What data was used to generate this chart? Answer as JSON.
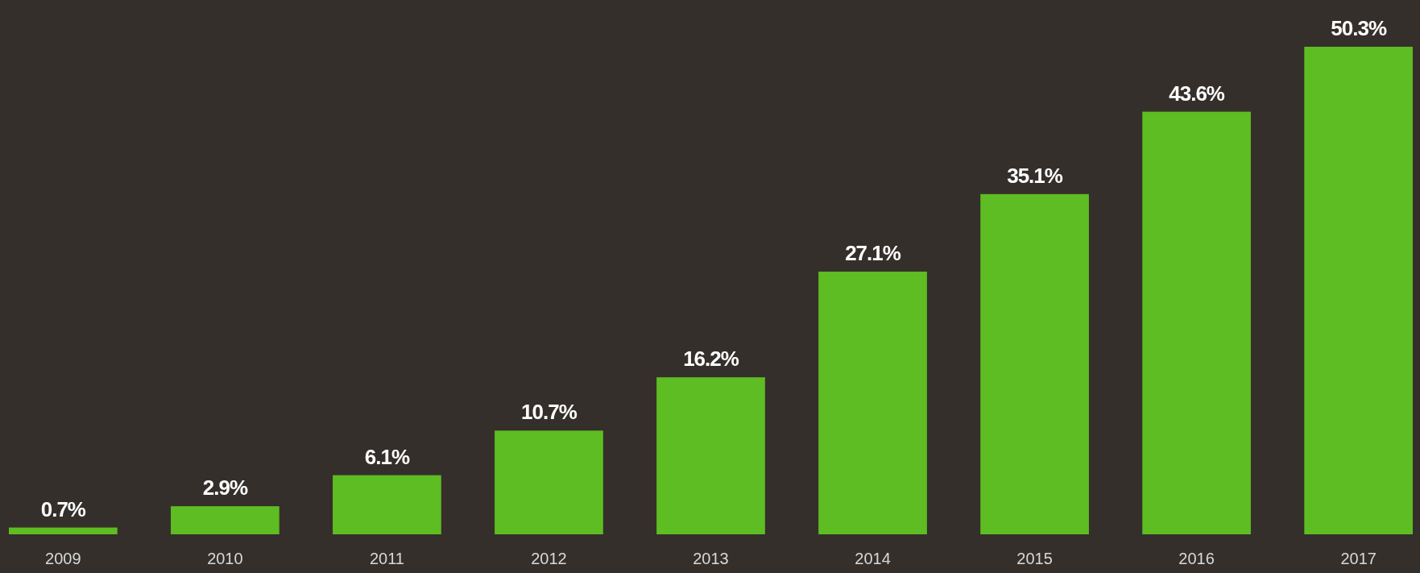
{
  "chart_data": {
    "type": "bar",
    "categories": [
      "2009",
      "2010",
      "2011",
      "2012",
      "2013",
      "2014",
      "2015",
      "2016",
      "2017"
    ],
    "values": [
      0.7,
      2.9,
      6.1,
      10.7,
      16.2,
      27.1,
      35.1,
      43.6,
      50.3
    ],
    "value_labels": [
      "0.7%",
      "2.9%",
      "6.1%",
      "10.7%",
      "16.2%",
      "27.1%",
      "35.1%",
      "43.6%",
      "50.3%"
    ],
    "color": "#5dbd22"
  }
}
